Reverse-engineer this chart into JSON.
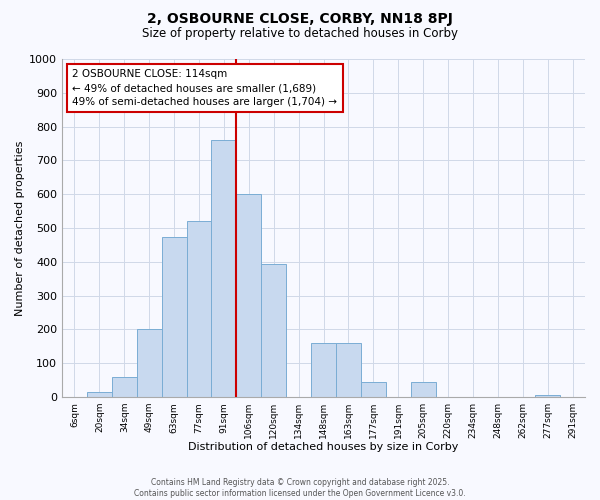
{
  "title": "2, OSBOURNE CLOSE, CORBY, NN18 8PJ",
  "subtitle": "Size of property relative to detached houses in Corby",
  "xlabel": "Distribution of detached houses by size in Corby",
  "ylabel": "Number of detached properties",
  "bar_color": "#c8d9ef",
  "bar_edge_color": "#7aadd4",
  "bin_labels": [
    "6sqm",
    "20sqm",
    "34sqm",
    "49sqm",
    "63sqm",
    "77sqm",
    "91sqm",
    "106sqm",
    "120sqm",
    "134sqm",
    "148sqm",
    "163sqm",
    "177sqm",
    "191sqm",
    "205sqm",
    "220sqm",
    "234sqm",
    "248sqm",
    "262sqm",
    "277sqm",
    "291sqm"
  ],
  "bar_heights": [
    0,
    15,
    60,
    200,
    475,
    520,
    760,
    600,
    395,
    0,
    160,
    160,
    45,
    0,
    45,
    0,
    0,
    0,
    0,
    5,
    0
  ],
  "ylim": [
    0,
    1000
  ],
  "yticks": [
    0,
    100,
    200,
    300,
    400,
    500,
    600,
    700,
    800,
    900,
    1000
  ],
  "vline_color": "#cc0000",
  "annotation_box_color": "#ffffff",
  "annotation_box_edge": "#cc0000",
  "property_line_label": "2 OSBOURNE CLOSE: 114sqm",
  "annotation_line1": "← 49% of detached houses are smaller (1,689)",
  "annotation_line2": "49% of semi-detached houses are larger (1,704) →",
  "footer1": "Contains HM Land Registry data © Crown copyright and database right 2025.",
  "footer2": "Contains public sector information licensed under the Open Government Licence v3.0.",
  "bg_color": "#f8f9ff",
  "grid_color": "#d0d8e8",
  "title_fontsize": 10,
  "subtitle_fontsize": 8.5
}
